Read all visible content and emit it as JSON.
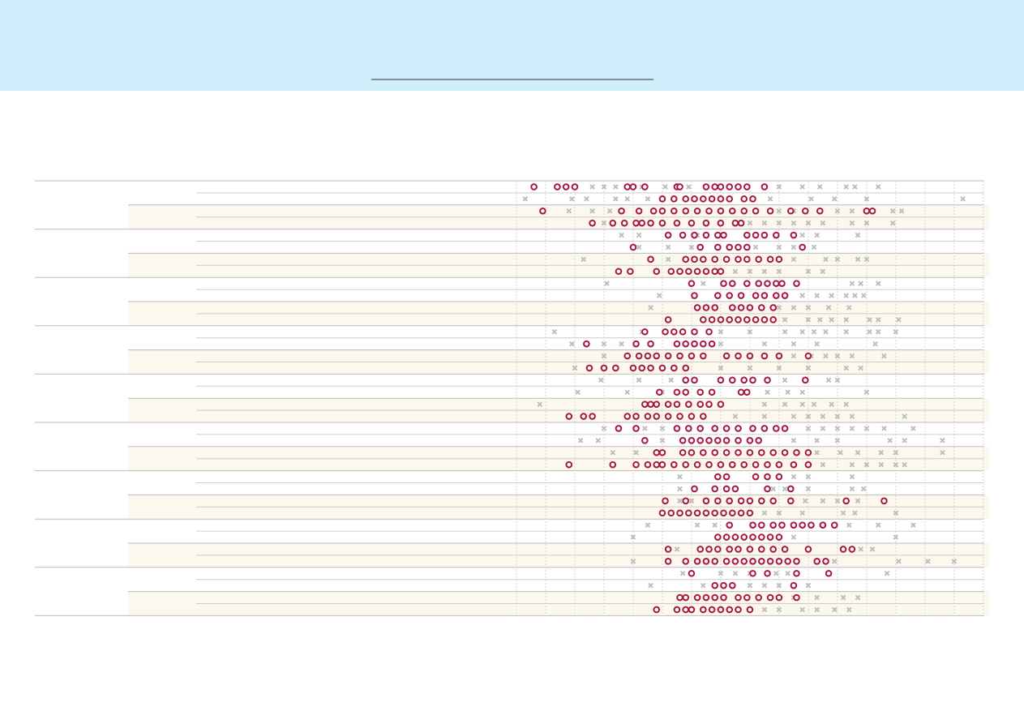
{
  "chart_data": {
    "type": "strip",
    "xlim": [
      0,
      16.2
    ],
    "xticks": [
      0,
      1,
      2,
      3,
      4,
      5,
      6,
      7,
      8,
      9,
      10,
      11,
      12,
      13,
      14,
      15,
      16
    ],
    "grid": true,
    "circle_color": "#a8173f",
    "cross_color": "#bdbdbd",
    "rows": [
      {
        "circles": [
          0.6,
          1.4,
          1.7,
          2.0,
          3.8,
          4.0,
          4.4,
          5.5,
          5.6,
          6.5,
          6.8,
          7.0,
          7.3,
          7.6,
          7.9,
          8.5
        ],
        "crosses": [
          2.6,
          3.0,
          3.4,
          4.3,
          5.1,
          5.9,
          9.0,
          9.8,
          10.4,
          11.3,
          11.6,
          12.4
        ]
      },
      {
        "circles": [
          5.0,
          5.4,
          5.8,
          6.1,
          6.4,
          6.7,
          7.0,
          7.3,
          7.8,
          8.1
        ],
        "crosses": [
          0.3,
          1.9,
          2.4,
          3.4,
          3.8,
          4.5,
          8.7,
          10.1,
          10.9,
          12.0,
          15.3
        ]
      },
      {
        "circles": [
          0.9,
          3.6,
          4.2,
          4.7,
          5.0,
          5.4,
          5.8,
          6.2,
          6.6,
          7.0,
          7.4,
          7.8,
          8.2,
          8.7,
          9.4,
          9.9,
          10.4,
          12.0,
          12.2
        ],
        "crosses": [
          1.8,
          2.6,
          3.2,
          9.0,
          9.5,
          11.0,
          11.5,
          12.9,
          13.2
        ]
      },
      {
        "circles": [
          2.6,
          3.3,
          3.7,
          4.1,
          4.3,
          4.6,
          5.0,
          5.5,
          6.0,
          6.5,
          7.0,
          7.5,
          7.7
        ],
        "crosses": [
          3.0,
          8.0,
          8.5,
          9.0,
          9.5,
          10.0,
          10.5,
          11.5,
          12.0,
          12.9
        ]
      },
      {
        "circles": [
          5.2,
          5.7,
          6.1,
          6.5,
          6.9,
          7.1,
          7.9,
          8.2,
          8.5,
          8.9,
          9.5
        ],
        "crosses": [
          3.6,
          4.2,
          6.2,
          9.8,
          10.3,
          11.7
        ]
      },
      {
        "circles": [
          4.0,
          6.3,
          6.9,
          7.3,
          7.6,
          7.9,
          9.8
        ],
        "crosses": [
          4.2,
          5.2,
          6.0,
          8.2,
          9.0,
          9.5,
          10.2
        ]
      },
      {
        "circles": [
          4.6,
          5.8,
          6.1,
          6.4,
          6.8,
          7.2,
          7.6,
          7.9,
          8.3,
          8.7,
          9.0
        ],
        "crosses": [
          2.3,
          5.2,
          9.5,
          10.6,
          11.0,
          11.7,
          12.0
        ]
      },
      {
        "circles": [
          3.5,
          3.9,
          4.8,
          5.3,
          5.6,
          5.9,
          6.2,
          6.5,
          6.8,
          7.0
        ],
        "crosses": [
          7.5,
          8.0,
          8.5,
          9.0,
          10.0,
          10.5
        ]
      },
      {
        "circles": [
          6.0,
          7.1,
          7.4,
          7.9,
          8.3,
          8.6,
          8.9,
          9.1,
          9.6
        ],
        "crosses": [
          3.1,
          6.4,
          11.5,
          11.8,
          12.4
        ]
      },
      {
        "circles": [
          6.1,
          6.9,
          7.3,
          7.7,
          8.2,
          8.5,
          8.9,
          9.2
        ],
        "crosses": [
          4.9,
          9.8,
          10.3,
          10.8,
          11.3,
          11.6,
          11.9
        ]
      },
      {
        "circles": [
          6.2,
          6.5,
          6.8,
          7.4,
          7.7,
          8.0,
          8.4,
          8.8
        ],
        "crosses": [
          4.6,
          9.0,
          9.5,
          10.0,
          10.7,
          11.4
        ]
      },
      {
        "circles": [
          5.2,
          6.4,
          6.7,
          7.0,
          7.3,
          7.6,
          7.9,
          8.2,
          8.5,
          8.8
        ],
        "crosses": [
          9.2,
          10.0,
          10.4,
          10.8,
          11.3,
          12.1,
          12.4,
          13.1
        ]
      },
      {
        "circles": [
          4.4,
          5.1,
          5.4,
          5.7,
          6.1,
          6.6
        ],
        "crosses": [
          1.3,
          4.3,
          7.0,
          8.0,
          9.2,
          9.8,
          10.2,
          10.6,
          11.3,
          12.1,
          12.4,
          13.0
        ]
      },
      {
        "circles": [
          2.4,
          4.1,
          4.6,
          5.5,
          5.8,
          6.1,
          6.4,
          6.7
        ],
        "crosses": [
          1.9,
          3.0,
          3.6,
          7.0,
          8.5,
          9.5,
          10.3,
          12.3
        ]
      },
      {
        "circles": [
          3.8,
          4.2,
          4.5,
          4.8,
          5.2,
          5.6,
          6.0,
          6.4,
          7.2,
          7.6,
          8.0,
          8.5,
          9.0,
          10.0
        ],
        "crosses": [
          3.0,
          9.5,
          10.1,
          10.6,
          11.0,
          11.5,
          12.6
        ]
      },
      {
        "circles": [
          2.5,
          3.0,
          3.4,
          4.0,
          4.3,
          4.6,
          5.0,
          5.4,
          5.8
        ],
        "crosses": [
          2.0,
          7.0,
          8.0,
          9.0,
          10.0,
          11.3,
          11.8
        ]
      },
      {
        "circles": [
          5.8,
          6.1,
          7.0,
          7.4,
          7.8,
          8.1,
          8.6,
          9.9
        ],
        "crosses": [
          2.9,
          4.2,
          5.3,
          9.2,
          10.7,
          11.0
        ]
      },
      {
        "circles": [
          4.9,
          5.5,
          5.8,
          6.3,
          6.7,
          7.7,
          7.9
        ],
        "crosses": [
          2.1,
          3.8,
          5.0,
          8.6,
          9.3,
          9.8,
          12.0
        ]
      },
      {
        "circles": [
          4.4,
          4.6,
          4.8,
          5.2,
          5.5,
          5.9,
          6.3,
          6.6,
          7.0
        ],
        "crosses": [
          0.8,
          8.5,
          9.2,
          9.8,
          10.2,
          10.8,
          11.3
        ]
      },
      {
        "circles": [
          1.8,
          2.3,
          2.6,
          3.8,
          4.1,
          4.5,
          4.8,
          5.2,
          5.6,
          6.0,
          6.4
        ],
        "crosses": [
          7.5,
          8.5,
          9.5,
          10.0,
          10.5,
          11.0,
          11.5,
          13.3
        ]
      },
      {
        "circles": [
          3.5,
          4.1,
          5.5,
          5.9,
          6.3,
          6.8,
          7.2,
          7.6,
          8.1,
          8.5,
          8.9,
          9.2
        ],
        "crosses": [
          3.0,
          4.4,
          5.0,
          10.0,
          10.5,
          11.0,
          11.5,
          12.0,
          12.6,
          13.6
        ]
      },
      {
        "circles": [
          4.4,
          5.7,
          6.0,
          6.3,
          6.6,
          6.9,
          7.2,
          7.6,
          8.0,
          8.3
        ],
        "crosses": [
          2.2,
          2.8,
          5.0,
          9.5,
          10.3,
          11.0,
          12.8,
          13.3,
          14.6
        ]
      },
      {
        "circles": [
          4.8,
          5.0,
          5.7,
          6.0,
          6.4,
          6.8,
          7.2,
          7.6,
          8.0,
          8.4,
          8.8,
          9.2,
          9.6,
          10.0
        ],
        "crosses": [
          3.3,
          4.1,
          10.3,
          11.1,
          11.7,
          12.5,
          13.0,
          14.6
        ]
      },
      {
        "circles": [
          1.8,
          3.3,
          4.1,
          4.5,
          4.8,
          5.0,
          5.4,
          5.8,
          6.2,
          6.6,
          7.0,
          7.4,
          7.8,
          8.2,
          8.6,
          9.0,
          9.5,
          10.0
        ],
        "crosses": [
          10.5,
          11.5,
          12.0,
          12.5,
          13.0,
          13.3
        ]
      },
      {
        "circles": [
          6.9,
          7.2,
          8.2,
          8.6,
          9.0
        ],
        "crosses": [
          5.6,
          9.5,
          10.0,
          11.5
        ]
      },
      {
        "circles": [
          6.1,
          6.8,
          7.2,
          7.5,
          8.6,
          9.4
        ],
        "crosses": [
          5.6,
          8.8,
          9.2,
          10.0,
          11.5,
          11.9
        ]
      },
      {
        "circles": [
          5.1,
          5.8,
          6.5,
          6.9,
          7.3,
          7.7,
          8.0,
          8.4,
          8.8,
          9.4,
          11.3,
          12.6
        ],
        "crosses": [
          5.6,
          6.0,
          9.9,
          10.5,
          11.0,
          11.7
        ]
      },
      {
        "circles": [
          5.0,
          5.3,
          5.6,
          5.9,
          6.2,
          6.5,
          6.8,
          7.1,
          7.4,
          7.7,
          8.0
        ],
        "crosses": [
          8.5,
          9.0,
          9.8,
          11.2,
          11.6,
          13.0
        ]
      },
      {
        "circles": [
          7.3,
          8.1,
          8.4,
          8.8,
          9.1,
          9.5,
          9.8,
          10.1,
          10.5,
          10.9
        ],
        "crosses": [
          4.5,
          6.2,
          6.8,
          11.4,
          12.4,
          13.6
        ]
      },
      {
        "circles": [
          6.9,
          7.2,
          7.5,
          7.8,
          8.1,
          8.4,
          8.7,
          9.0
        ],
        "crosses": [
          4.0,
          9.5,
          13.0
        ]
      },
      {
        "circles": [
          5.2,
          6.3,
          6.6,
          6.9,
          7.3,
          7.6,
          8.0,
          8.4,
          8.8,
          9.2,
          10.0,
          11.2,
          11.5
        ],
        "crosses": [
          5.5,
          11.8,
          12.2
        ]
      },
      {
        "circles": [
          5.2,
          5.8,
          6.2,
          6.5,
          6.8,
          7.2,
          7.5,
          7.8,
          8.1,
          8.4,
          8.7,
          9.0,
          9.3,
          9.6,
          10.3,
          10.6
        ],
        "crosses": [
          4.0,
          10.9,
          13.1,
          14.1,
          15.0
        ]
      },
      {
        "circles": [
          6.0,
          8.1,
          8.6,
          9.6,
          10.7
        ],
        "crosses": [
          5.7,
          7.0,
          7.5,
          8.0,
          8.9,
          9.3,
          12.7
        ]
      },
      {
        "circles": [
          6.8,
          7.1,
          7.4,
          9.5
        ],
        "crosses": [
          4.6,
          6.4,
          8.0,
          8.5,
          9.0,
          10.0
        ]
      },
      {
        "circles": [
          5.6,
          5.8,
          6.2,
          6.5,
          6.8,
          7.1,
          7.6,
          7.9,
          8.3,
          8.7,
          9.0,
          9.6
        ],
        "crosses": [
          9.5,
          10.3,
          11.2,
          11.7
        ]
      },
      {
        "circles": [
          4.8,
          5.5,
          5.8,
          6.0,
          6.4,
          6.7,
          7.0,
          7.3,
          7.6,
          8.0
        ],
        "crosses": [
          8.5,
          9.0,
          9.8,
          10.3,
          10.9,
          11.4
        ]
      }
    ]
  }
}
